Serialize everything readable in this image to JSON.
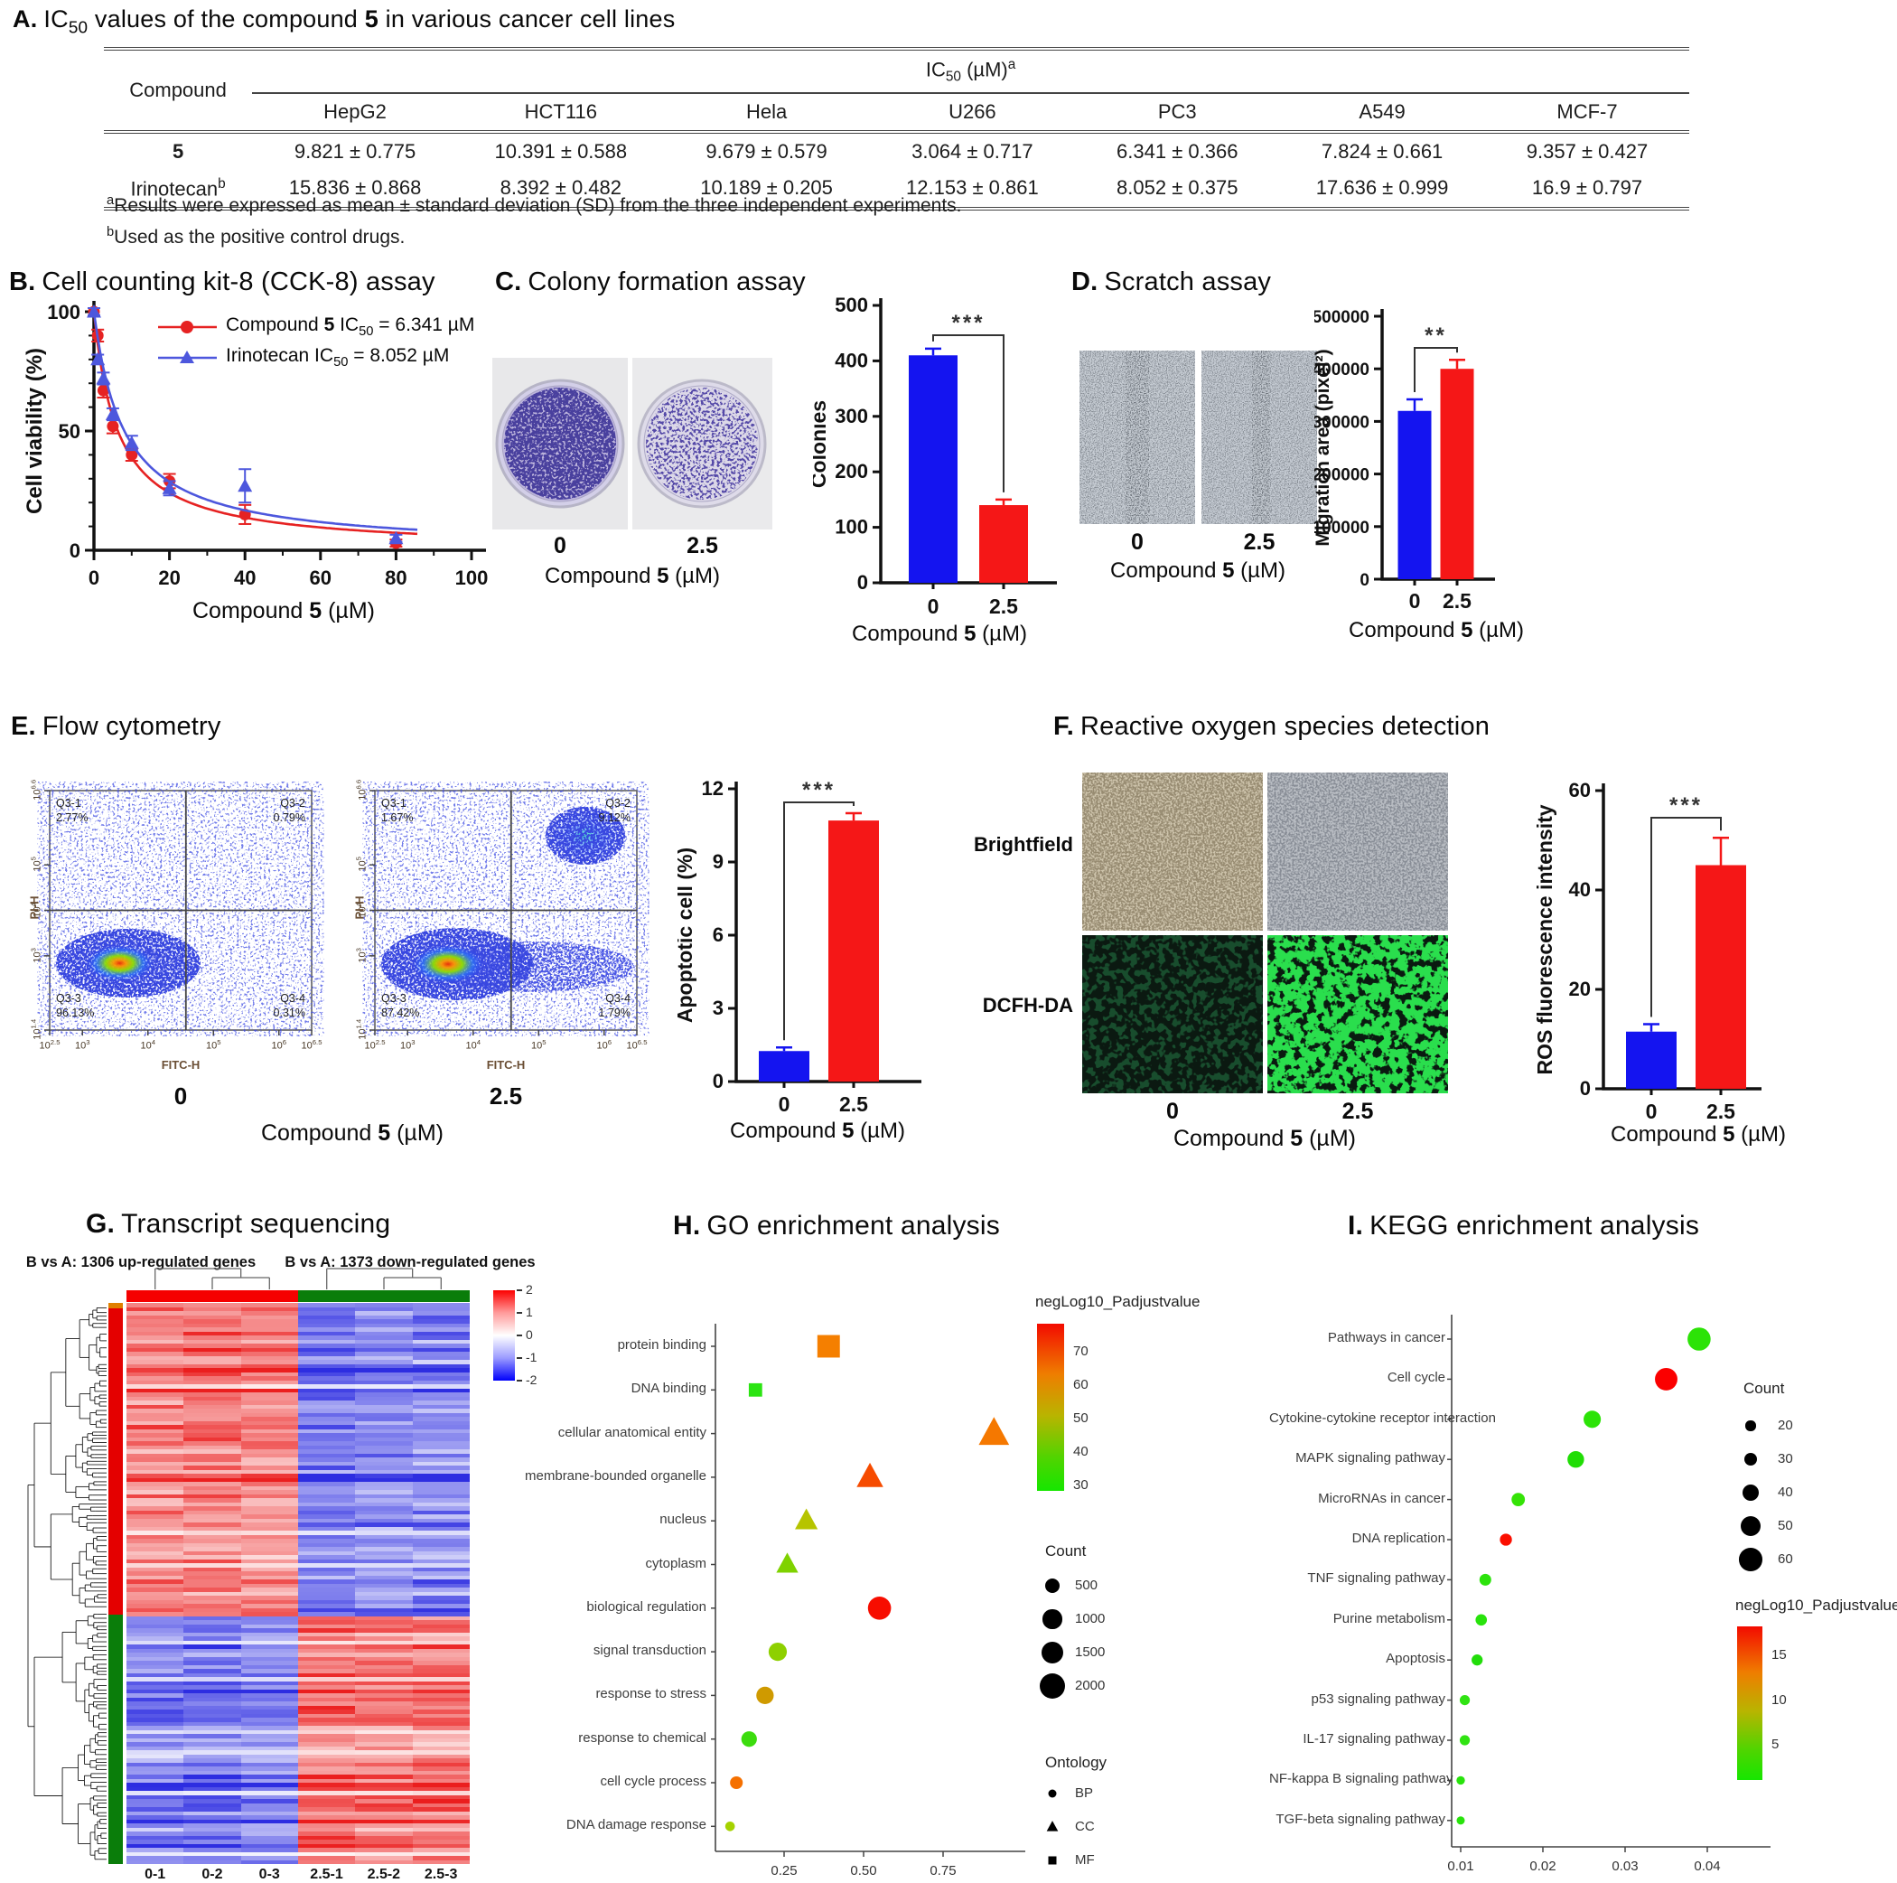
{
  "compound_xlabel": [
    {
      "t": "Compound ",
      "s": "n"
    },
    {
      "t": "5",
      "s": "b"
    },
    {
      "t": " (µM)",
      "s": "n"
    }
  ],
  "panelA": {
    "label": "A.",
    "title_parts": [
      {
        "t": "IC",
        "s": "n"
      },
      {
        "t": "50",
        "s": "sub"
      },
      {
        "t": " values of the compound ",
        "s": "n"
      },
      {
        "t": "5",
        "s": "b"
      },
      {
        "t": " in various cancer cell lines",
        "s": "n"
      }
    ],
    "table": {
      "compound_header": "Compound",
      "group_header_parts": [
        {
          "t": "IC",
          "s": "n"
        },
        {
          "t": "50",
          "s": "sub"
        },
        {
          "t": " (µM)",
          "s": "n"
        },
        {
          "t": "a",
          "s": "sup"
        }
      ],
      "cell_lines": [
        "HepG2",
        "HCT116",
        "Hela",
        "U266",
        "PC3",
        "A549",
        "MCF-7"
      ],
      "rows": [
        {
          "name_parts": [
            {
              "t": "5",
              "s": "b"
            }
          ],
          "values": [
            "9.821 ± 0.775",
            "10.391 ± 0.588",
            "9.679 ± 0.579",
            "3.064 ± 0.717",
            "6.341 ± 0.366",
            "7.824 ± 0.661",
            "9.357 ± 0.427"
          ]
        },
        {
          "name_parts": [
            {
              "t": "Irinotecan",
              "s": "n"
            },
            {
              "t": "b",
              "s": "sup"
            }
          ],
          "values": [
            "15.836 ± 0.868",
            "8.392 ± 0.482",
            "10.189 ± 0.205",
            "12.153 ± 0.861",
            "8.052 ± 0.375",
            "17.636 ± 0.999",
            "16.9 ± 0.797"
          ]
        }
      ],
      "footnotes": [
        [
          {
            "t": "a",
            "s": "sup"
          },
          {
            "t": "Results were expressed as mean ± standard deviation (SD) from the three independent experiments.",
            "s": "n"
          }
        ],
        [
          {
            "t": "b",
            "s": "sup"
          },
          {
            "t": "Used as the positive control drugs.",
            "s": "n"
          }
        ]
      ]
    }
  },
  "panelB": {
    "label": "B.",
    "title": "Cell counting kit-8 (CCK-8) assay"
  },
  "panelC": {
    "label": "C.",
    "title": "Colony formation assay",
    "doses": [
      "0",
      "2.5"
    ]
  },
  "panelD": {
    "label": "D.",
    "title": "Scratch assay",
    "doses": [
      "0",
      "2.5"
    ]
  },
  "panelE": {
    "label": "E.",
    "title": "Flow cytometry",
    "doses": [
      "0",
      "2.5"
    ],
    "xaxis": {
      "label": "FITC-H",
      "ticks": [
        "2.5",
        "3",
        "4",
        "5",
        "6",
        "6.5"
      ]
    },
    "yaxis": {
      "label": "PI-H",
      "ticks": [
        "6.6",
        "5",
        "4",
        "3",
        "1.4"
      ]
    },
    "plots": [
      {
        "dose": "0",
        "quadrants": [
          {
            "id": "Q3-1",
            "pct": "2.77%"
          },
          {
            "id": "Q3-2",
            "pct": "0.79%"
          },
          {
            "id": "Q3-3",
            "pct": "96.13%"
          },
          {
            "id": "Q3-4",
            "pct": "0.31%"
          }
        ]
      },
      {
        "dose": "2.5",
        "quadrants": [
          {
            "id": "Q3-1",
            "pct": "1.67%"
          },
          {
            "id": "Q3-2",
            "pct": "9.12%"
          },
          {
            "id": "Q3-3",
            "pct": "87.42%"
          },
          {
            "id": "Q3-4",
            "pct": "1.79%"
          }
        ]
      }
    ]
  },
  "panelF": {
    "label": "F.",
    "title": "Reactive oxygen species detection",
    "row_labels": [
      "Brightfield",
      "DCFH-DA"
    ],
    "doses": [
      "0",
      "2.5"
    ]
  },
  "panelG": {
    "label": "G.",
    "title": "Transcript sequencing"
  },
  "panelH": {
    "label": "H.",
    "title": "GO enrichment analysis"
  },
  "panelI": {
    "label": "I.",
    "title": "KEGG enrichment analysis"
  },
  "chart_data": [
    {
      "id": "cck8",
      "type": "line",
      "ylabel": "Cell viability (%)",
      "xlim": [
        0,
        100
      ],
      "ylim": [
        0,
        100
      ],
      "xticks": [
        0,
        20,
        40,
        60,
        80,
        100
      ],
      "yticks": [
        0,
        50,
        100
      ],
      "xlabel_parts": [
        {
          "t": "Compound ",
          "s": "n"
        },
        {
          "t": "5",
          "s": "b"
        },
        {
          "t": " (µM)",
          "s": "n"
        }
      ],
      "series": [
        {
          "name": "Compound 5",
          "ic50": 6.341,
          "color": "#e62222",
          "marker": "circle",
          "legend_parts": [
            {
              "t": "Compound ",
              "s": "n"
            },
            {
              "t": "5",
              "s": "b"
            },
            {
              "t": " IC",
              "s": "n"
            },
            {
              "t": "50",
              "s": "sub"
            },
            {
              "t": " = 6.341 µM",
              "s": "n"
            }
          ],
          "x": [
            0,
            1,
            2.5,
            5,
            10,
            20,
            40,
            80
          ],
          "y": [
            100,
            90,
            67,
            52,
            40,
            29,
            15,
            3
          ],
          "err": [
            1.5,
            2.5,
            3,
            3,
            2.5,
            3,
            4,
            1.5
          ]
        },
        {
          "name": "Irinotecan",
          "ic50": 8.052,
          "color": "#4d57dd",
          "marker": "triangle",
          "legend_parts": [
            {
              "t": "Irinotecan IC",
              "s": "n"
            },
            {
              "t": "50",
              "s": "sub"
            },
            {
              "t": " = 8.052 µM",
              "s": "n"
            }
          ],
          "x": [
            0,
            1,
            2.5,
            5,
            10,
            20,
            40,
            80
          ],
          "y": [
            100,
            80,
            72,
            57,
            45,
            26,
            27,
            5
          ],
          "err": [
            1.5,
            2,
            2.5,
            2.5,
            3,
            3,
            7,
            1.5
          ]
        }
      ]
    },
    {
      "id": "colonies",
      "type": "bar",
      "ylabel": "Colonies",
      "categories": [
        "0",
        "2.5"
      ],
      "values": [
        410,
        140
      ],
      "errors": [
        12,
        10
      ],
      "colors": [
        "#1414f0",
        "#f51717"
      ],
      "ylim": [
        0,
        500
      ],
      "yticks": [
        0,
        100,
        200,
        300,
        400,
        500
      ],
      "sig": "***",
      "xlabel_parts": [
        {
          "t": "Compound ",
          "s": "n"
        },
        {
          "t": "5",
          "s": "b"
        },
        {
          "t": " (µM)",
          "s": "n"
        }
      ]
    },
    {
      "id": "migration",
      "type": "bar",
      "ylabel": "Migration area (pixel²)",
      "categories": [
        "0",
        "2.5"
      ],
      "values": [
        320000,
        400000
      ],
      "errors": [
        22000,
        17000
      ],
      "colors": [
        "#1414f0",
        "#f51717"
      ],
      "ylim": [
        0,
        500000
      ],
      "yticks": [
        0,
        100000,
        200000,
        300000,
        400000,
        500000
      ],
      "sig": "**",
      "xlabel_parts": [
        {
          "t": "Compound ",
          "s": "n"
        },
        {
          "t": "5",
          "s": "b"
        },
        {
          "t": " (µM)",
          "s": "n"
        }
      ]
    },
    {
      "id": "apoptotic",
      "type": "bar",
      "ylabel": "Apoptotic cell (%)",
      "categories": [
        "0",
        "2.5"
      ],
      "values": [
        1.25,
        10.7
      ],
      "errors": [
        0.15,
        0.3
      ],
      "colors": [
        "#1414f0",
        "#f51717"
      ],
      "ylim": [
        0,
        12
      ],
      "yticks": [
        0,
        3,
        6,
        9,
        12
      ],
      "sig": "***",
      "xlabel_parts": [
        {
          "t": "Compound ",
          "s": "n"
        },
        {
          "t": "5",
          "s": "b"
        },
        {
          "t": " (µM)",
          "s": "n"
        }
      ]
    },
    {
      "id": "ros",
      "type": "bar",
      "ylabel": "ROS fluorescence intensity",
      "categories": [
        "0",
        "2.5"
      ],
      "values": [
        11.5,
        45
      ],
      "errors": [
        1.5,
        5.5
      ],
      "colors": [
        "#1414f0",
        "#f51717"
      ],
      "ylim": [
        0,
        60
      ],
      "yticks": [
        0,
        20,
        40,
        60
      ],
      "sig": "***",
      "xlabel_parts": [
        {
          "t": "Compound ",
          "s": "n"
        },
        {
          "t": "5",
          "s": "b"
        },
        {
          "t": " (µM)",
          "s": "n"
        }
      ]
    },
    {
      "id": "go",
      "type": "scatter",
      "xticks": [
        0.25,
        0.5,
        0.75
      ],
      "rows": [
        {
          "label": "protein binding",
          "x": 0.39,
          "count": 1500,
          "neglog10": 68,
          "shape": "square",
          "color": "#f57f00"
        },
        {
          "label": "DNA binding",
          "x": 0.16,
          "count": 400,
          "neglog10": 30,
          "shape": "square",
          "color": "#2be412"
        },
        {
          "label": "cellular anatomical entity",
          "x": 0.91,
          "count": 2200,
          "neglog10": 66,
          "shape": "triangle",
          "color": "#f57800"
        },
        {
          "label": "membrane-bounded organelle",
          "x": 0.52,
          "count": 1600,
          "neglog10": 72,
          "shape": "triangle",
          "color": "#f64b00"
        },
        {
          "label": "nucleus",
          "x": 0.32,
          "count": 1100,
          "neglog10": 45,
          "shape": "triangle",
          "color": "#b6c400"
        },
        {
          "label": "cytoplasm",
          "x": 0.26,
          "count": 1000,
          "neglog10": 40,
          "shape": "triangle",
          "color": "#7fd200"
        },
        {
          "label": "biological regulation",
          "x": 0.55,
          "count": 1600,
          "neglog10": 78,
          "shape": "circle",
          "color": "#f70d00"
        },
        {
          "label": "signal transduction",
          "x": 0.23,
          "count": 900,
          "neglog10": 42,
          "shape": "circle",
          "color": "#8ed000"
        },
        {
          "label": "response to stress",
          "x": 0.19,
          "count": 800,
          "neglog10": 55,
          "shape": "circle",
          "color": "#cf9a00"
        },
        {
          "label": "response to chemical",
          "x": 0.14,
          "count": 600,
          "neglog10": 35,
          "shape": "circle",
          "color": "#3cdc0e"
        },
        {
          "label": "cell cycle process",
          "x": 0.1,
          "count": 350,
          "neglog10": 66,
          "shape": "circle",
          "color": "#f57000"
        },
        {
          "label": "DNA damage response",
          "x": 0.08,
          "count": 150,
          "neglog10": 40,
          "shape": "circle",
          "color": "#a5d200"
        }
      ],
      "legend": {
        "color_title": "negLog10_Padjustvalue",
        "color_ticks": [
          "70",
          "60",
          "50",
          "40",
          "30"
        ],
        "count_title": "Count",
        "counts": [
          "500",
          "1000",
          "1500",
          "2000"
        ],
        "ontology_title": "Ontology",
        "ontology": [
          {
            "shape": "circle",
            "label": "BP"
          },
          {
            "shape": "triangle",
            "label": "CC"
          },
          {
            "shape": "square",
            "label": "MF"
          }
        ]
      }
    },
    {
      "id": "kegg",
      "type": "scatter",
      "xticks": [
        0.01,
        0.02,
        0.03,
        0.04
      ],
      "rows": [
        {
          "label": "Pathways in cancer",
          "x": 0.039,
          "count": 60,
          "neglog10": 4,
          "shape": "circle",
          "color": "#2ce307"
        },
        {
          "label": "Cell cycle",
          "x": 0.035,
          "count": 58,
          "neglog10": 17,
          "shape": "circle",
          "color": "#fb0000"
        },
        {
          "label": "Cytokine-cytokine receptor interaction",
          "x": 0.026,
          "count": 42,
          "neglog10": 4,
          "shape": "circle",
          "color": "#2ce307"
        },
        {
          "label": "MAPK signaling pathway",
          "x": 0.024,
          "count": 40,
          "neglog10": 4,
          "shape": "circle",
          "color": "#20dd05"
        },
        {
          "label": "MicroRNAs in cancer",
          "x": 0.017,
          "count": 30,
          "neglog10": 3,
          "shape": "circle",
          "color": "#35e307"
        },
        {
          "label": "DNA replication",
          "x": 0.0155,
          "count": 26,
          "neglog10": 16,
          "shape": "circle",
          "color": "#fb0f00"
        },
        {
          "label": "TNF signaling pathway",
          "x": 0.013,
          "count": 25,
          "neglog10": 3,
          "shape": "circle",
          "color": "#2ce30c"
        },
        {
          "label": "Purine metabolism",
          "x": 0.0125,
          "count": 24,
          "neglog10": 3,
          "shape": "circle",
          "color": "#28e30c"
        },
        {
          "label": "Apoptosis",
          "x": 0.012,
          "count": 23,
          "neglog10": 3,
          "shape": "circle",
          "color": "#22dd0a"
        },
        {
          "label": "p53 signaling pathway",
          "x": 0.0105,
          "count": 20,
          "neglog10": 2,
          "shape": "circle",
          "color": "#30e312"
        },
        {
          "label": "IL-17 signaling pathway",
          "x": 0.0105,
          "count": 20,
          "neglog10": 2,
          "shape": "circle",
          "color": "#30e312"
        },
        {
          "label": "NF-kappa B signaling pathway",
          "x": 0.01,
          "count": 15,
          "neglog10": 2,
          "shape": "circle",
          "color": "#28e30c"
        },
        {
          "label": "TGF-beta signaling pathway",
          "x": 0.01,
          "count": 14,
          "neglog10": 2,
          "shape": "circle",
          "color": "#28e30c"
        }
      ],
      "legend": {
        "count_title": "Count",
        "counts": [
          "20",
          "30",
          "40",
          "50",
          "60"
        ],
        "color_title": "negLog10_Padjustvalue",
        "color_ticks": [
          "15",
          "10",
          "5"
        ]
      }
    },
    {
      "id": "heatmap",
      "type": "heatmap",
      "title_left": "B vs A: 1306 up-regulated genes",
      "title_right": "B vs A: 1373 down-regulated genes",
      "col_labels": [
        "0-1",
        "0-2",
        "0-3",
        "2.5-1",
        "2.5-2",
        "2.5-3"
      ],
      "legend_ticks": [
        "2",
        "1",
        "0",
        "-1",
        "-2"
      ],
      "up_fraction": 0.556,
      "colors": {
        "up": "#eb1e1e",
        "down": "#3b3bd9",
        "group_left": "#f50000",
        "group_right": "#0a7d0a"
      }
    }
  ]
}
